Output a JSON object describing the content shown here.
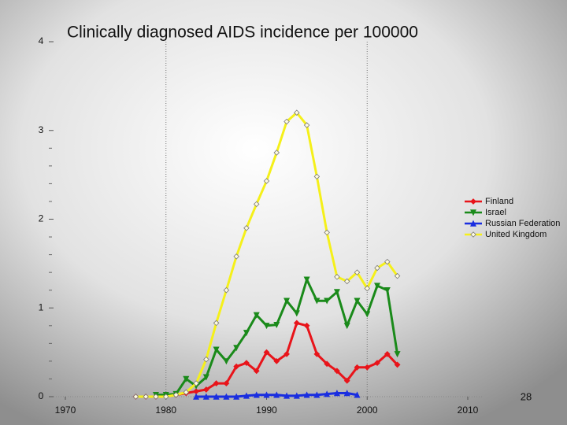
{
  "chart_data": {
    "type": "line",
    "title": "Clinically diagnosed AIDS incidence per 100000",
    "page_number": "28",
    "x": [
      1977,
      1978,
      1979,
      1980,
      1981,
      1982,
      1983,
      1984,
      1985,
      1986,
      1987,
      1988,
      1989,
      1990,
      1991,
      1992,
      1993,
      1994,
      1995,
      1996,
      1997,
      1998,
      1999,
      2000,
      2001,
      2002,
      2003
    ],
    "series": [
      {
        "name": "Finland",
        "color": "#e8141a",
        "marker": "diamond",
        "values": [
          0,
          0,
          0,
          0.01,
          0.02,
          0.04,
          0.06,
          0.08,
          0.15,
          0.15,
          0.34,
          0.38,
          0.29,
          0.5,
          0.4,
          0.48,
          0.83,
          0.8,
          0.48,
          0.37,
          0.29,
          0.18,
          0.33,
          0.33,
          0.38,
          0.48,
          0.36
        ]
      },
      {
        "name": "Israel",
        "color": "#1a8a1a",
        "marker": "triangle-down",
        "values": [
          null,
          null,
          0.02,
          0.02,
          0.03,
          0.2,
          0.12,
          0.22,
          0.53,
          0.4,
          0.55,
          0.72,
          0.92,
          0.8,
          0.81,
          1.08,
          0.94,
          1.32,
          1.08,
          1.08,
          1.18,
          0.8,
          1.08,
          0.93,
          1.25,
          1.2,
          0.48
        ]
      },
      {
        "name": "Russian Federation",
        "color": "#1a2ee0",
        "marker": "triangle-up",
        "values": [
          null,
          null,
          null,
          null,
          null,
          null,
          0,
          0,
          0,
          0,
          0,
          0.01,
          0.02,
          0.02,
          0.02,
          0.01,
          0.01,
          0.02,
          0.02,
          0.03,
          0.04,
          0.04,
          0.02,
          null,
          null,
          null,
          null
        ]
      },
      {
        "name": "United Kingdom",
        "color": "#f5f01a",
        "marker": "open-diamond",
        "values": [
          0,
          0,
          0,
          0,
          0.02,
          0.05,
          0.15,
          0.42,
          0.83,
          1.2,
          1.58,
          1.9,
          2.17,
          2.43,
          2.75,
          3.1,
          3.2,
          3.06,
          2.48,
          1.85,
          1.35,
          1.3,
          1.4,
          1.22,
          1.45,
          1.52,
          1.36
        ]
      }
    ],
    "xlim": [
      1970,
      2010
    ],
    "xticks": [
      1970,
      1980,
      1990,
      2000,
      2010
    ],
    "ylim": [
      0,
      4
    ],
    "yticks": [
      0,
      1,
      2,
      3,
      4
    ],
    "yminorticks": [
      0.2,
      0.4,
      0.6,
      0.8,
      1.2,
      1.4,
      1.6,
      1.8,
      2.2,
      2.4,
      2.6,
      2.8
    ],
    "xgrid": [
      1980,
      2000
    ],
    "legend": "right"
  }
}
